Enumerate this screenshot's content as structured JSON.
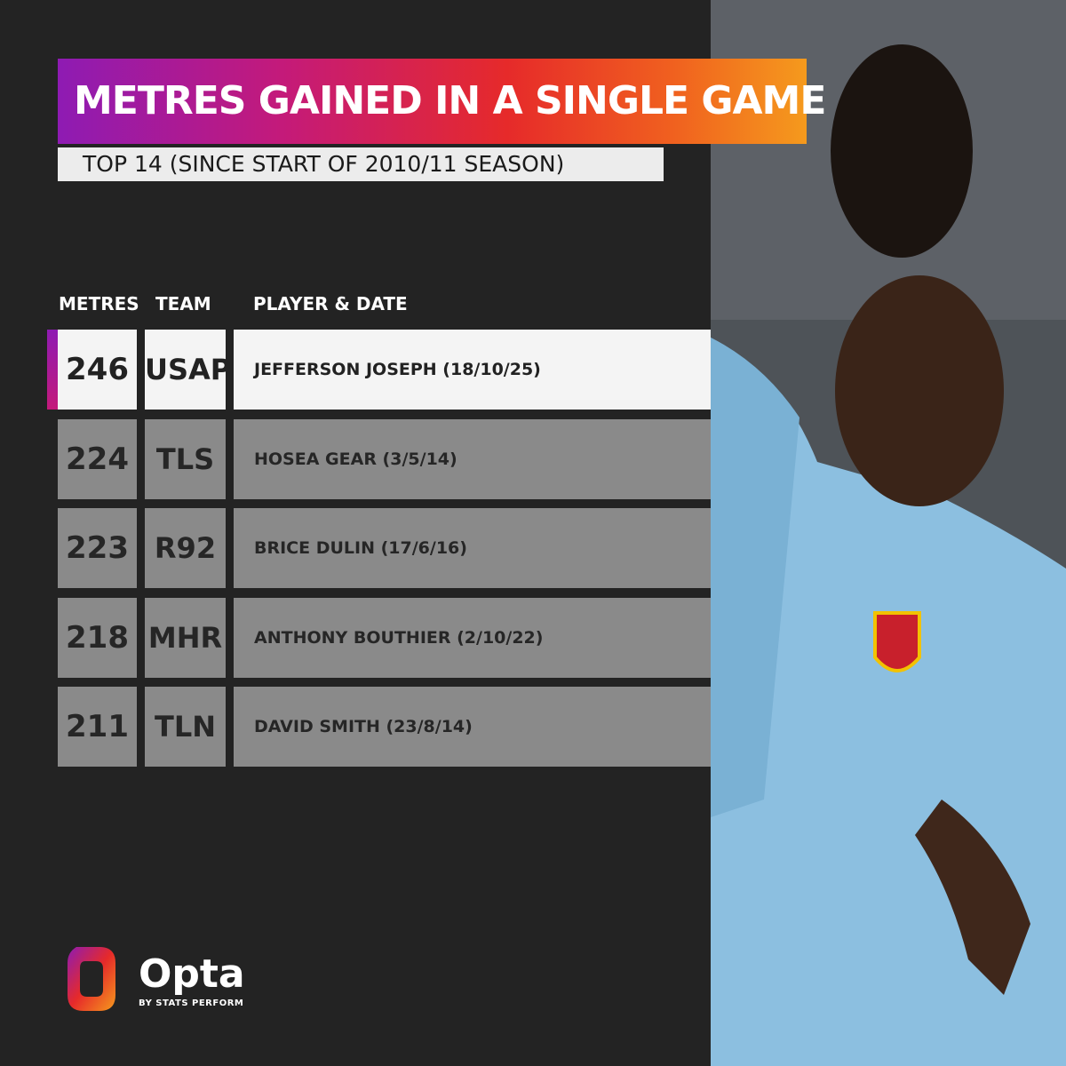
{
  "title": "METRES GAINED IN A SINGLE GAME",
  "subtitle": "TOP 14 (SINCE START OF 2010/11 SEASON)",
  "columns": {
    "metres": "METRES",
    "team": "TEAM",
    "player": "PLAYER & DATE"
  },
  "rows": [
    {
      "metres": "246",
      "team": "USAP",
      "player": "JEFFERSON JOSEPH (18/10/25)"
    },
    {
      "metres": "224",
      "team": "TLS",
      "player": "HOSEA GEAR (3/5/14)"
    },
    {
      "metres": "223",
      "team": "R92",
      "player": "BRICE DULIN (17/6/16)"
    },
    {
      "metres": "218",
      "team": "MHR",
      "player": "ANTHONY BOUTHIER (2/10/22)"
    },
    {
      "metres": "211",
      "team": "TLN",
      "player": "DAVID SMITH (23/8/14)"
    }
  ],
  "logo": {
    "name": "Opta",
    "tagline": "BY STATS PERFORM"
  },
  "colors": {
    "background": "#232323",
    "accent_gradient": [
      "#8e1bb3",
      "#e62a2a",
      "#f59a1d"
    ],
    "row_highlight": "#f4f4f4",
    "row_default": "#8a8a8a"
  },
  "photo": {
    "description_icon": "player-photo"
  }
}
